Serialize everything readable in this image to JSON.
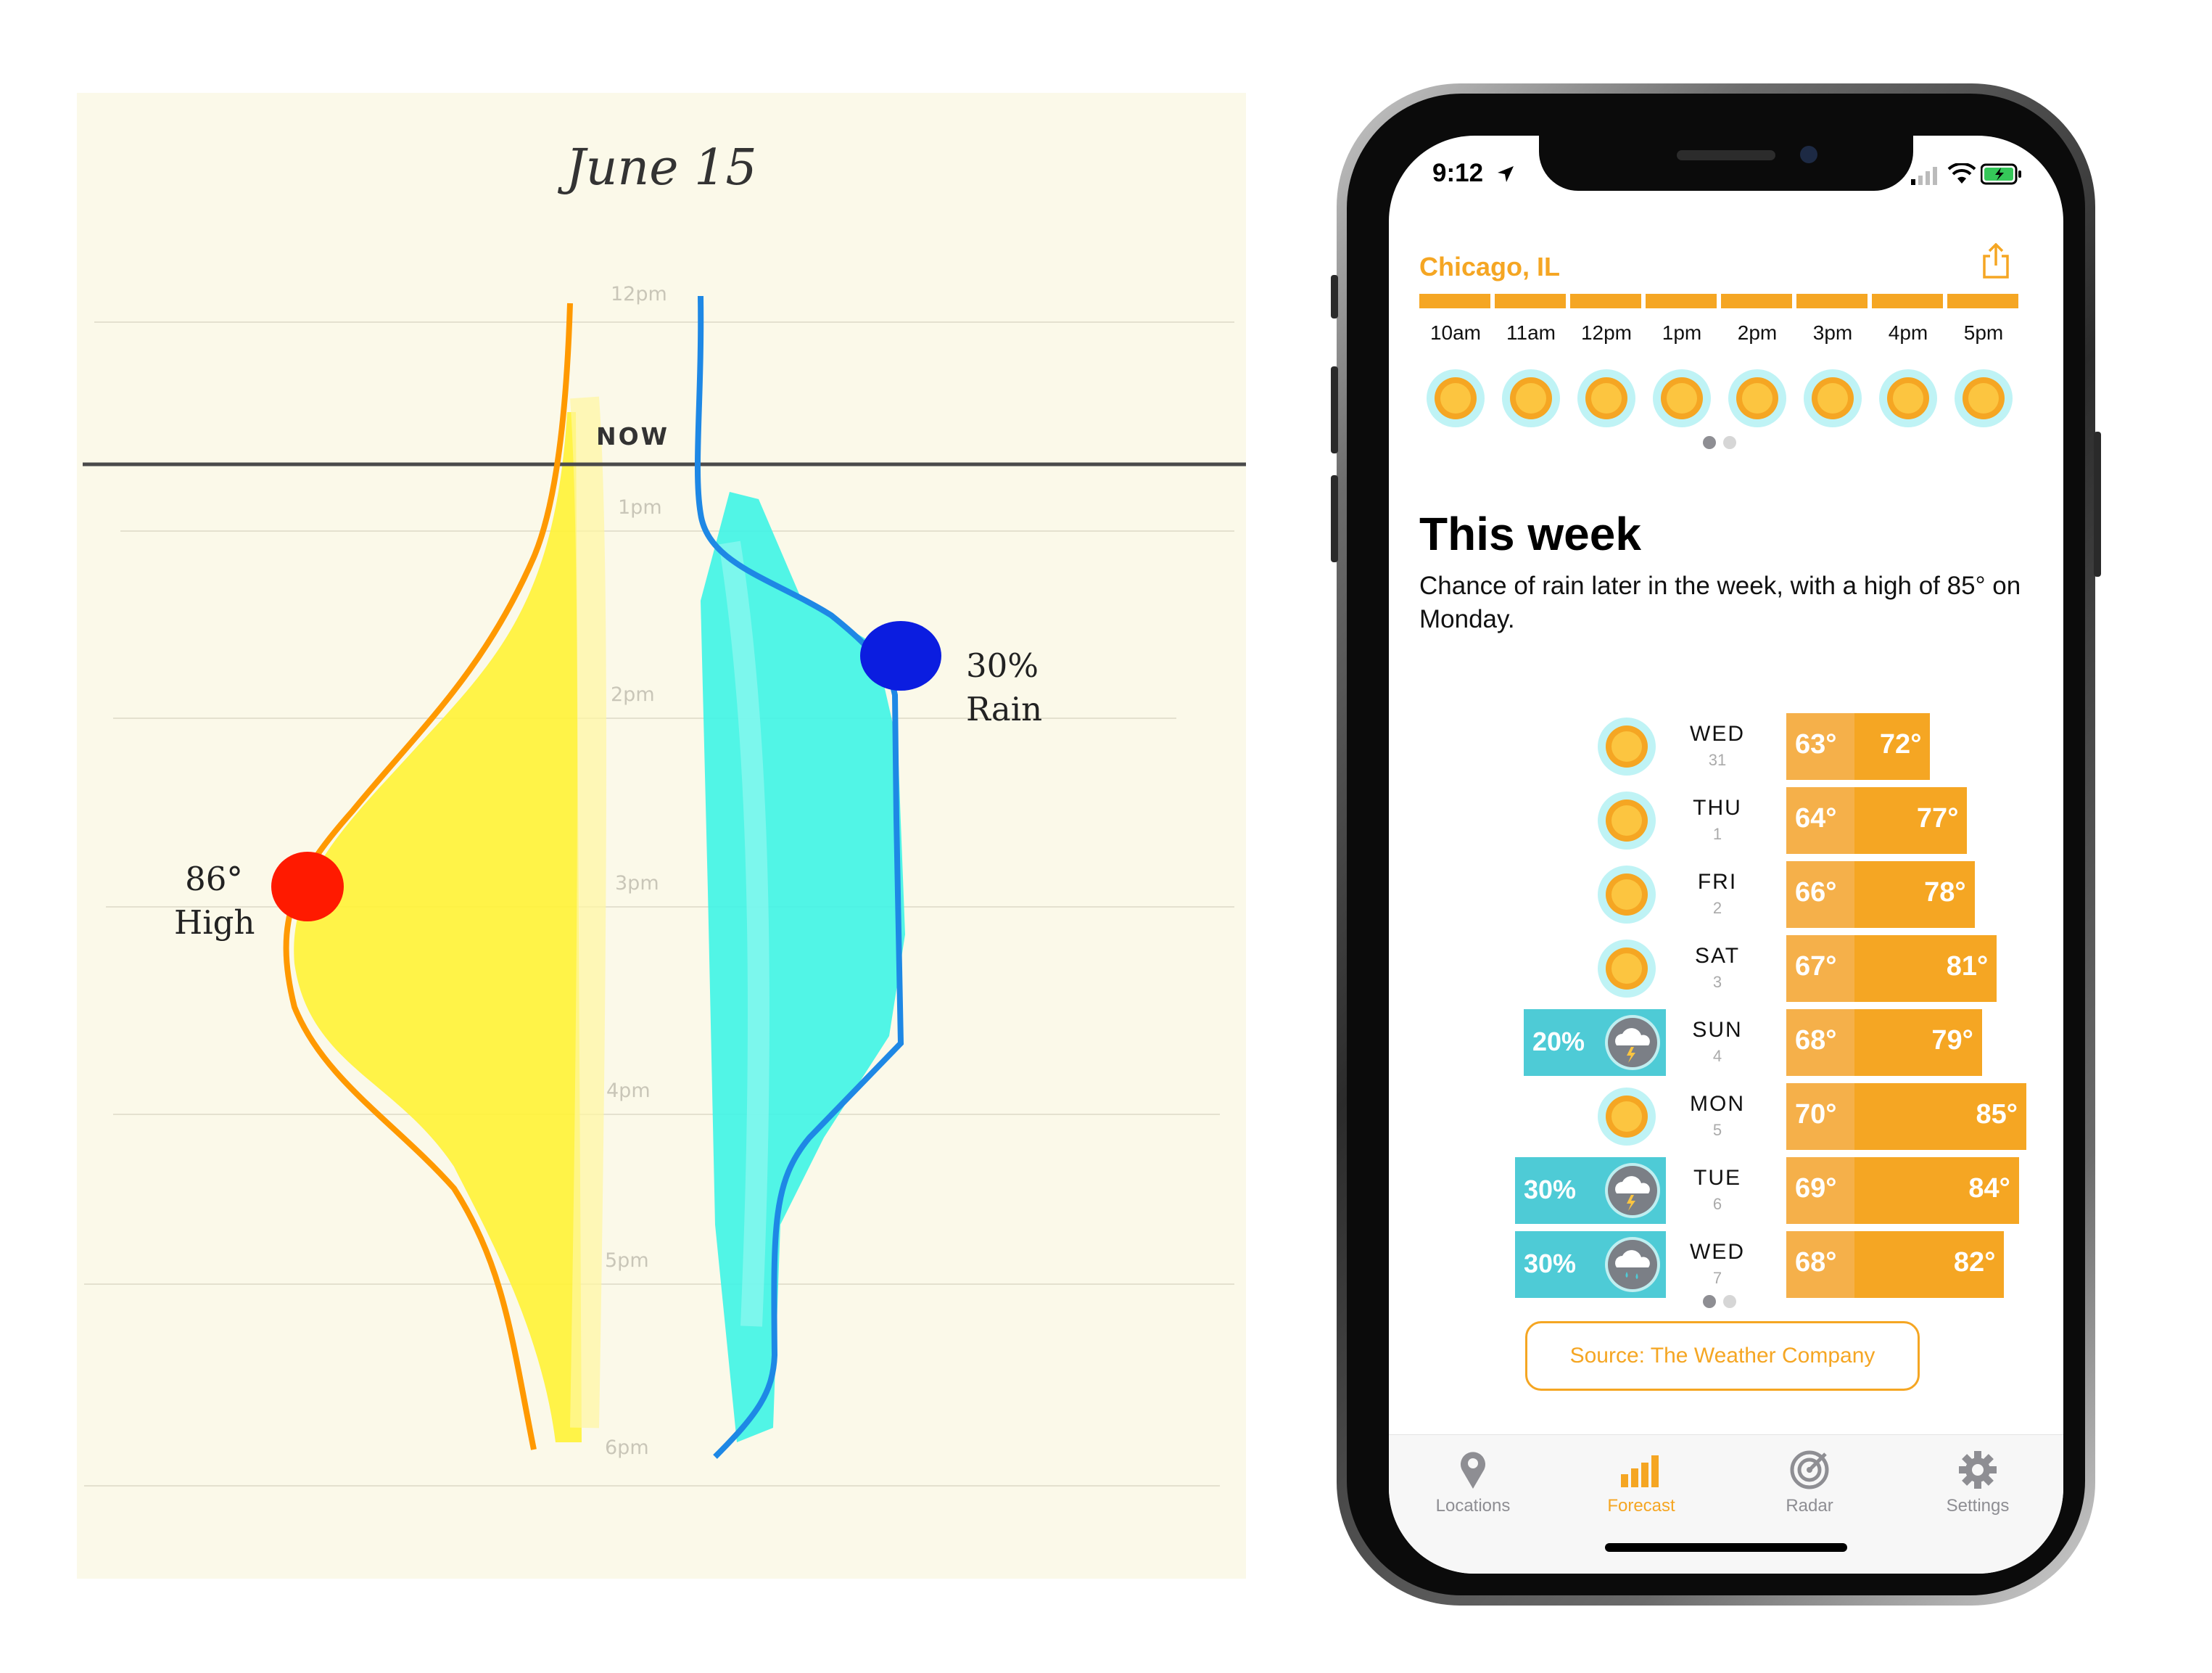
{
  "sketch": {
    "title": "June 15",
    "hours": [
      "12pm",
      "1pm",
      "2pm",
      "3pm",
      "4pm",
      "5pm",
      "6pm"
    ],
    "now_label": "NOW",
    "high_label": [
      "86°",
      "High"
    ],
    "rain_label": [
      "30%",
      "Rain"
    ],
    "colors": {
      "temperature": "#ff9900",
      "temp_fill": "#fff23a",
      "rain": "#1e88e5",
      "rain_fill": "#3ef4e6",
      "high_dot": "#ff1a00",
      "rain_dot": "#0b1de0"
    }
  },
  "phone": {
    "status": {
      "time": "9:12",
      "location_icon": "location-arrow-icon"
    },
    "city": "Chicago, IL",
    "share_icon": "share-icon",
    "hourly": [
      {
        "label": "10am",
        "icon": "sun-icon"
      },
      {
        "label": "11am",
        "icon": "sun-icon"
      },
      {
        "label": "12pm",
        "icon": "sun-icon"
      },
      {
        "label": "1pm",
        "icon": "sun-icon"
      },
      {
        "label": "2pm",
        "icon": "sun-icon"
      },
      {
        "label": "3pm",
        "icon": "sun-icon"
      },
      {
        "label": "4pm",
        "icon": "sun-icon"
      },
      {
        "label": "5pm",
        "icon": "sun-icon"
      }
    ],
    "page_dots": {
      "count": 2,
      "active": 0
    },
    "week": {
      "title": "This week",
      "summary": "Chance of rain later in the week, with a high of 85° on Monday.",
      "days": [
        {
          "name": "WED",
          "date": "31",
          "icon": "sun-icon",
          "rain": "",
          "low": "63°",
          "high": "72°",
          "low_val": 63,
          "high_val": 72
        },
        {
          "name": "THU",
          "date": "1",
          "icon": "sun-icon",
          "rain": "",
          "low": "64°",
          "high": "77°",
          "low_val": 64,
          "high_val": 77
        },
        {
          "name": "FRI",
          "date": "2",
          "icon": "sun-icon",
          "rain": "",
          "low": "66°",
          "high": "78°",
          "low_val": 66,
          "high_val": 78
        },
        {
          "name": "SAT",
          "date": "3",
          "icon": "sun-icon",
          "rain": "",
          "low": "67°",
          "high": "81°",
          "low_val": 67,
          "high_val": 81
        },
        {
          "name": "SUN",
          "date": "4",
          "icon": "thunderstorm-icon",
          "rain": "20%",
          "low": "68°",
          "high": "79°",
          "low_val": 68,
          "high_val": 79
        },
        {
          "name": "MON",
          "date": "5",
          "icon": "sun-icon",
          "rain": "",
          "low": "70°",
          "high": "85°",
          "low_val": 70,
          "high_val": 85
        },
        {
          "name": "TUE",
          "date": "6",
          "icon": "thunderstorm-icon",
          "rain": "30%",
          "low": "69°",
          "high": "84°",
          "low_val": 69,
          "high_val": 84
        },
        {
          "name": "WED",
          "date": "7",
          "icon": "rain-cloud-icon",
          "rain": "30%",
          "low": "68°",
          "high": "82°",
          "low_val": 68,
          "high_val": 82
        }
      ]
    },
    "source_button": "Source: The Weather Company",
    "tabs": [
      {
        "label": "Locations",
        "icon": "map-pin-icon",
        "active": false
      },
      {
        "label": "Forecast",
        "icon": "bar-chart-icon",
        "active": true
      },
      {
        "label": "Radar",
        "icon": "radar-icon",
        "active": false
      },
      {
        "label": "Settings",
        "icon": "gear-icon",
        "active": false
      }
    ],
    "colors": {
      "accent": "#f5a623",
      "low_shade": "#f5b04a",
      "rain_box": "#4ecbd6",
      "inactive_tab": "#8e8e93"
    }
  }
}
